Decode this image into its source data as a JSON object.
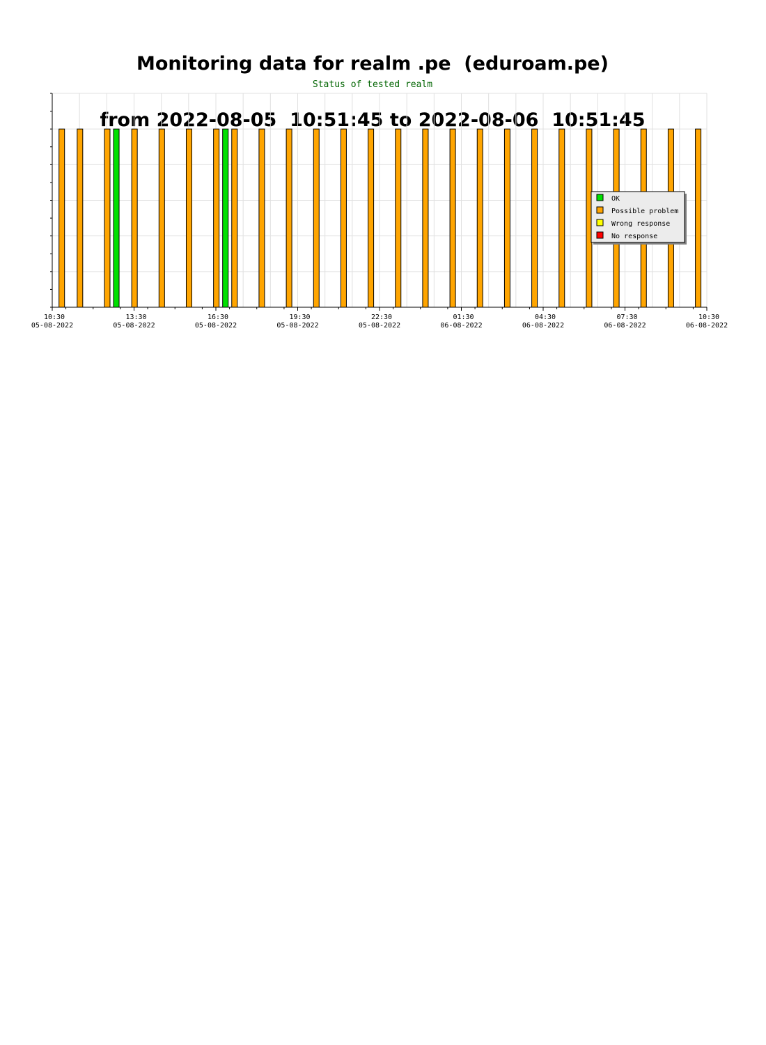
{
  "page": {
    "title_line1": "Monitoring data for realm .pe  (eduroam.pe)",
    "title_line2": "from 2022-08-05  10:51:45 to 2022-08-06  10:51:45"
  },
  "chart_data": {
    "type": "bar",
    "title": "Status of tested realm",
    "xlabel": "",
    "ylabel": "",
    "grid": true,
    "legend_position": "right",
    "x_range": [
      "2022-08-05 10:30",
      "2022-08-06 10:30"
    ],
    "ylim": [
      0,
      6
    ],
    "x_ticks": [
      {
        "time": "10:30",
        "date": "05-08-2022"
      },
      {
        "time": "13:30",
        "date": "05-08-2022"
      },
      {
        "time": "16:30",
        "date": "05-08-2022"
      },
      {
        "time": "19:30",
        "date": "05-08-2022"
      },
      {
        "time": "22:30",
        "date": "05-08-2022"
      },
      {
        "time": "01:30",
        "date": "06-08-2022"
      },
      {
        "time": "04:30",
        "date": "06-08-2022"
      },
      {
        "time": "07:30",
        "date": "06-08-2022"
      },
      {
        "time": "10:30",
        "date": "06-08-2022"
      }
    ],
    "legend": [
      {
        "label": "OK",
        "color": "#00e000"
      },
      {
        "label": "Possible problem",
        "color": "#ffa500"
      },
      {
        "label": "Wrong response",
        "color": "#ffff00"
      },
      {
        "label": "No response",
        "color": "#ff0000"
      }
    ],
    "series": [
      {
        "name": "Possible problem",
        "color": "#ffa500",
        "points": [
          {
            "time": "2022-08-05 10:51",
            "value": 5
          },
          {
            "time": "2022-08-05 11:31",
            "value": 5
          },
          {
            "time": "2022-08-05 12:31",
            "value": 5
          },
          {
            "time": "2022-08-05 13:31",
            "value": 5
          },
          {
            "time": "2022-08-05 14:31",
            "value": 5
          },
          {
            "time": "2022-08-05 15:31",
            "value": 5
          },
          {
            "time": "2022-08-05 16:31",
            "value": 5
          },
          {
            "time": "2022-08-05 17:11",
            "value": 5
          },
          {
            "time": "2022-08-05 18:11",
            "value": 5
          },
          {
            "time": "2022-08-05 19:11",
            "value": 5
          },
          {
            "time": "2022-08-05 20:11",
            "value": 5
          },
          {
            "time": "2022-08-05 21:11",
            "value": 5
          },
          {
            "time": "2022-08-05 22:11",
            "value": 5
          },
          {
            "time": "2022-08-05 23:11",
            "value": 5
          },
          {
            "time": "2022-08-06 00:11",
            "value": 5
          },
          {
            "time": "2022-08-06 01:11",
            "value": 5
          },
          {
            "time": "2022-08-06 02:11",
            "value": 5
          },
          {
            "time": "2022-08-06 03:11",
            "value": 5
          },
          {
            "time": "2022-08-06 04:11",
            "value": 5
          },
          {
            "time": "2022-08-06 05:11",
            "value": 5
          },
          {
            "time": "2022-08-06 06:11",
            "value": 5
          },
          {
            "time": "2022-08-06 07:11",
            "value": 5
          },
          {
            "time": "2022-08-06 08:11",
            "value": 5
          },
          {
            "time": "2022-08-06 09:11",
            "value": 5
          },
          {
            "time": "2022-08-06 10:11",
            "value": 5
          }
        ]
      },
      {
        "name": "OK",
        "color": "#00e000",
        "points": [
          {
            "time": "2022-08-05 12:51",
            "value": 5
          },
          {
            "time": "2022-08-05 16:51",
            "value": 5
          }
        ]
      }
    ]
  }
}
